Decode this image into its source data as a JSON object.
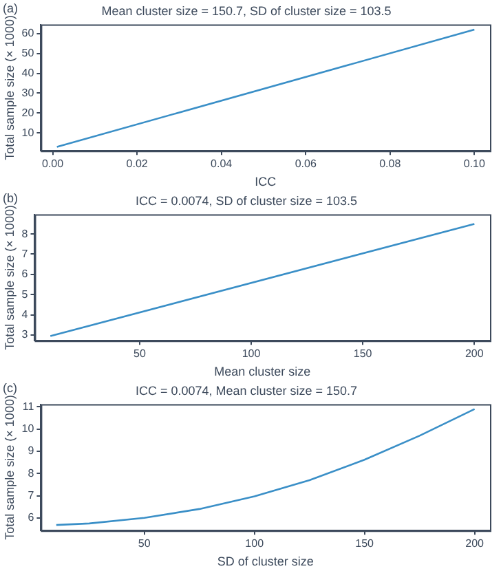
{
  "chart_data": [
    {
      "type": "line",
      "title": "Mean cluster size = 150.7, SD of cluster size = 103.5",
      "xlabel": "ICC",
      "ylabel": "Total sample size (× 1000)",
      "annotations": [
        "(a)"
      ],
      "x": [
        0.001,
        0.1
      ],
      "series": [
        {
          "color": "#3a8fc7",
          "values": [
            3,
            62
          ]
        }
      ],
      "xlim": [
        -0.0028,
        0.1037
      ],
      "xticks": [
        {
          "value": 0,
          "label": "0.00"
        },
        {
          "value": 0.02,
          "label": "0.02"
        },
        {
          "value": 0.04,
          "label": "0.04"
        },
        {
          "value": 0.06,
          "label": "0.06"
        },
        {
          "value": 0.08,
          "label": "0.08"
        },
        {
          "value": 0.1,
          "label": "0.10"
        }
      ],
      "ylim": [
        1,
        64.6
      ],
      "yticks": [
        10,
        20,
        30,
        40,
        50,
        60
      ],
      "grid": false,
      "legend": false,
      "marker": "none",
      "line_style": "solid"
    },
    {
      "type": "line",
      "title": "ICC = 0.0074, SD of cluster size = 103.5",
      "xlabel": "Mean cluster size",
      "ylabel": "Total sample size (× 1000)",
      "annotations": [
        "(b)"
      ],
      "x": [
        10,
        200
      ],
      "series": [
        {
          "color": "#3a8fc7",
          "values": [
            2.95,
            8.5
          ]
        }
      ],
      "xlim": [
        3,
        207
      ],
      "xticks": [
        50,
        100,
        150,
        200
      ],
      "ylim": [
        2.72,
        8.97
      ],
      "yticks": [
        3,
        4,
        5,
        6,
        7,
        8
      ],
      "grid": false,
      "legend": false,
      "marker": "none",
      "line_style": "solid"
    },
    {
      "type": "line",
      "title": "ICC = 0.0074, Mean cluster size = 150.7",
      "xlabel": "SD of cluster size",
      "ylabel": "Total sample size (× 1000)",
      "annotations": [
        "(c)"
      ],
      "x": [
        10,
        25,
        50,
        75,
        100,
        125,
        150,
        175,
        200
      ],
      "series": [
        {
          "color": "#3a8fc7",
          "values": [
            5.68,
            5.75,
            6.0,
            6.4,
            6.97,
            7.7,
            8.62,
            9.7,
            10.9
          ]
        }
      ],
      "xlim": [
        3,
        207
      ],
      "xticks": [
        50,
        100,
        150,
        200
      ],
      "ylim": [
        5.43,
        11.12
      ],
      "yticks": [
        6,
        7,
        8,
        9,
        10,
        11
      ],
      "grid": false,
      "legend": false,
      "marker": "none",
      "line_style": "solid"
    }
  ]
}
